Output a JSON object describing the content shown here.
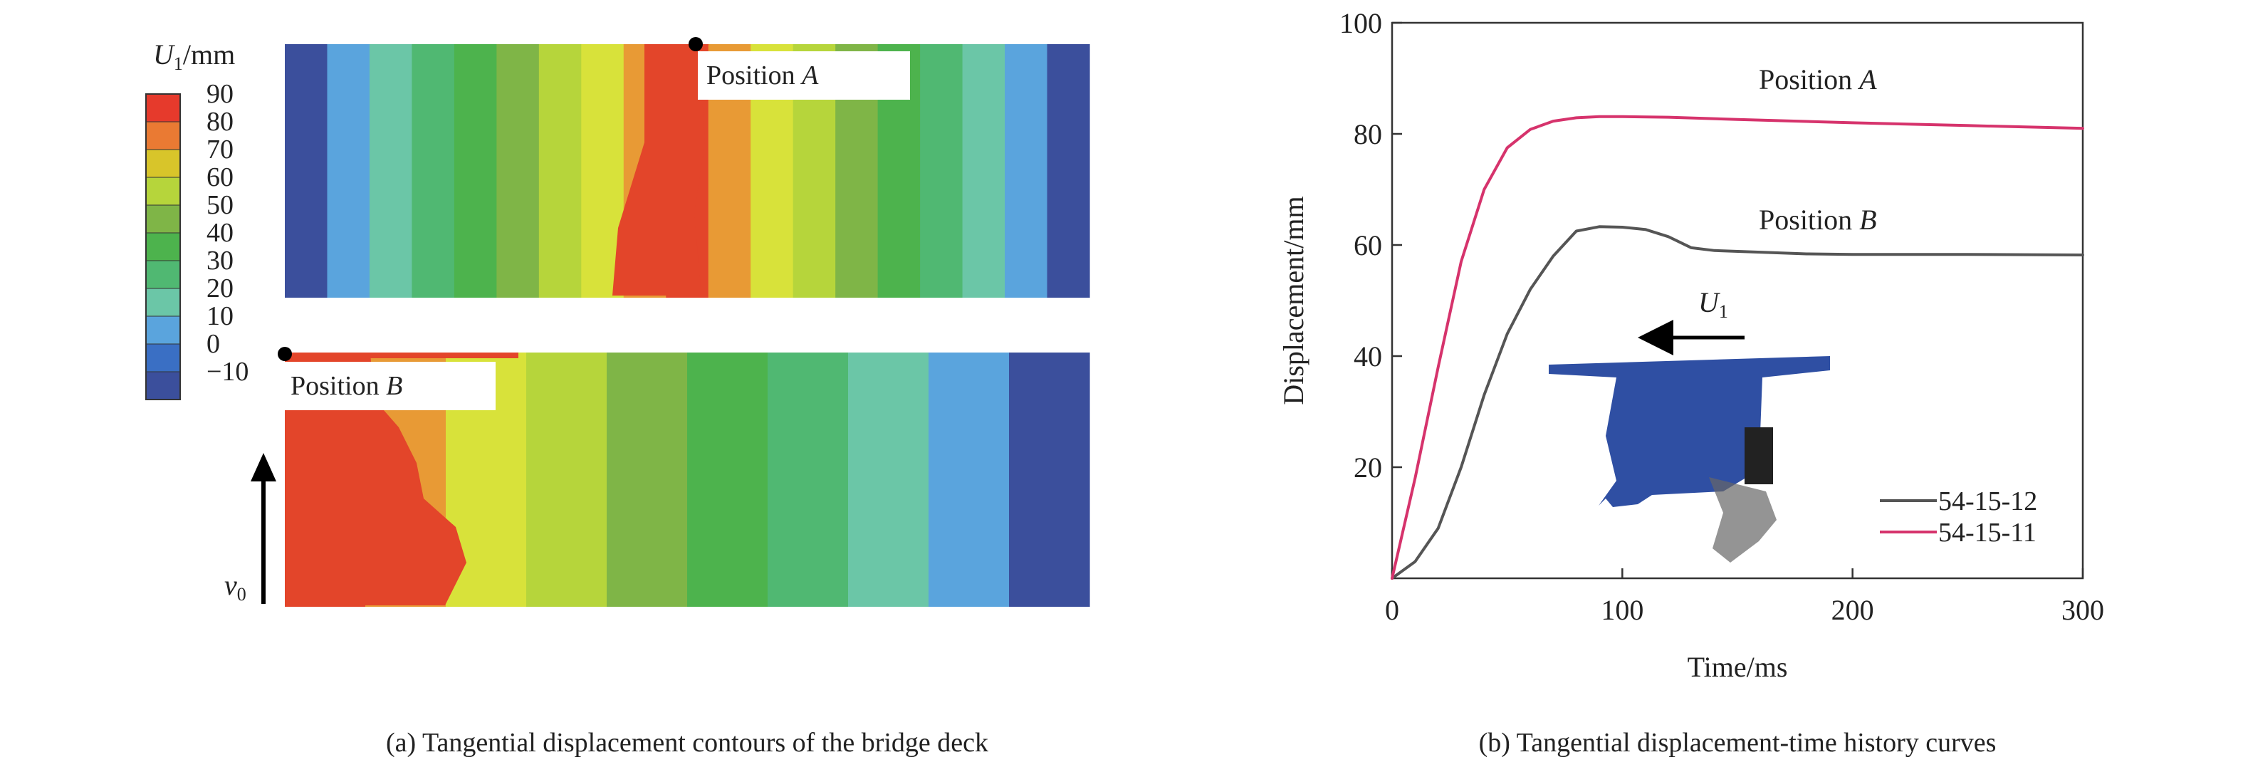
{
  "panel_a": {
    "caption": "(a) Tangential displacement contours of the bridge deck",
    "legend": {
      "title_var": "U",
      "title_sub": "1",
      "title_unit": "/mm",
      "labels": [
        "90",
        "80",
        "70",
        "60",
        "50",
        "40",
        "30",
        "20",
        "10",
        "0",
        "−10"
      ],
      "colors": [
        "#e63a2c",
        "#ea7a33",
        "#d8c52a",
        "#b6d53b",
        "#7fb547",
        "#4db34d",
        "#50b872",
        "#6bc6a7",
        "#5aa4dd",
        "#3a6fc4",
        "#3b4f9c"
      ]
    },
    "deck_a": {
      "label_prefix": "Position ",
      "label_var": "A",
      "strip_colors": [
        "#3b4f9c",
        "#5aa4dd",
        "#6bc6a7",
        "#50b872",
        "#4db34d",
        "#7fb547",
        "#b6d53b",
        "#d8e23a",
        "#e89a35",
        "#e3452a",
        "#e89a35",
        "#d8e23a",
        "#b6d53b",
        "#7fb547",
        "#4db34d",
        "#50b872",
        "#6bc6a7",
        "#5aa4dd",
        "#3b4f9c"
      ]
    },
    "deck_b": {
      "label_prefix": "Position ",
      "label_var": "B",
      "strip_colors": [
        "#e3452a",
        "#e89a35",
        "#d8e23a",
        "#b6d53b",
        "#7fb547",
        "#4db34d",
        "#50b872",
        "#6bc6a7",
        "#5aa4dd",
        "#3b4f9c"
      ]
    },
    "velocity_var": "v",
    "velocity_sub": "0"
  },
  "panel_b": {
    "caption": "(b) Tangential displacement-time history curves",
    "annotation_a_prefix": "Position ",
    "annotation_a_var": "A",
    "annotation_b_prefix": "Position ",
    "annotation_b_var": "B",
    "inset_arrow_var": "U",
    "inset_arrow_sub": "1",
    "colors": {
      "series_12": "#555555",
      "series_11": "#d6336c"
    }
  },
  "chart_data": {
    "type": "line",
    "xlabel": "Time/ms",
    "ylabel": "Displacement/mm",
    "xlim": [
      0,
      300
    ],
    "ylim": [
      0,
      100
    ],
    "xticks": [
      0,
      100,
      200,
      300
    ],
    "yticks": [
      20,
      40,
      60,
      80,
      100
    ],
    "legend_position": "bottom-right",
    "series": [
      {
        "name": "54-15-12",
        "x": [
          0,
          10,
          20,
          30,
          40,
          50,
          60,
          70,
          80,
          90,
          100,
          110,
          120,
          130,
          140,
          160,
          180,
          200,
          250,
          300
        ],
        "y": [
          0,
          3,
          9,
          20,
          33,
          44,
          52,
          58,
          62.5,
          63.3,
          63.2,
          62.8,
          61.5,
          59.5,
          59,
          58.7,
          58.4,
          58.3,
          58.3,
          58.2
        ]
      },
      {
        "name": "54-15-11",
        "x": [
          0,
          10,
          20,
          30,
          40,
          50,
          60,
          70,
          80,
          90,
          100,
          120,
          150,
          200,
          250,
          300
        ],
        "y": [
          0,
          18,
          38,
          57,
          70,
          77.5,
          80.8,
          82.3,
          82.9,
          83.1,
          83.1,
          83,
          82.6,
          82,
          81.5,
          81
        ]
      }
    ]
  }
}
